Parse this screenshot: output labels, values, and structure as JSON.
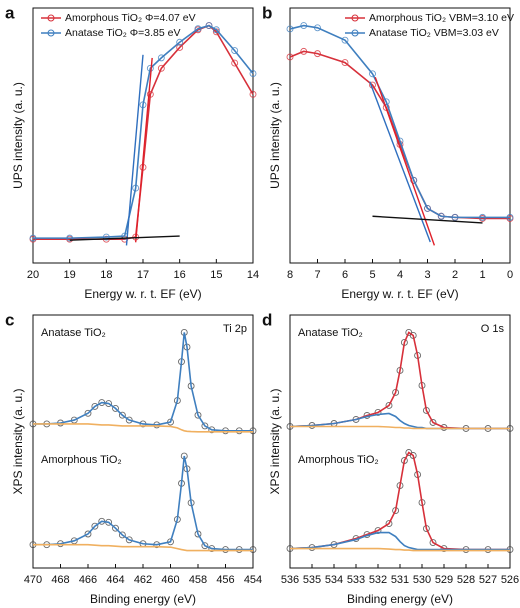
{
  "chart_data": [
    {
      "type": "line",
      "panel": "a",
      "xlabel": "Energy w. r. t. EF (eV)",
      "ylabel": "UPS intensity (a. u.)",
      "xlim": [
        20,
        14
      ],
      "xticks": [
        20,
        19,
        18,
        17,
        16,
        15,
        14
      ],
      "x": [
        20,
        19,
        18,
        17.5,
        17.2,
        17.0,
        16.8,
        16.5,
        16.0,
        15.5,
        15.2,
        15.0,
        14.5,
        14.0
      ],
      "series": [
        {
          "name": "Amorphous TiO₂ Φ=4.07 eV",
          "color": "#d7303a",
          "values": [
            31,
            31,
            31,
            31,
            33,
            100,
            170,
            195,
            215,
            232,
            236,
            230,
            200,
            170
          ]
        },
        {
          "name": "Anatase TiO₂ Φ=3.85 eV",
          "color": "#3f7fbf",
          "values": [
            32,
            32,
            33,
            34,
            80,
            160,
            195,
            205,
            220,
            233,
            236,
            232,
            212,
            190
          ]
        }
      ],
      "lines": [
        {
          "color": "#e0202a",
          "x": [
            17.2,
            16.75
          ],
          "values": [
            28,
            205
          ]
        },
        {
          "color": "#2f6fbf",
          "x": [
            17.45,
            17.0
          ],
          "values": [
            25,
            208
          ]
        },
        {
          "color": "#111111",
          "x": [
            19,
            16
          ],
          "values": [
            30,
            34
          ]
        }
      ]
    },
    {
      "type": "line",
      "panel": "b",
      "xlabel": "Energy w. r. t. EF (eV)",
      "ylabel": "UPS intensity (a. u.)",
      "xlim": [
        8,
        0
      ],
      "xticks": [
        8,
        7,
        6,
        5,
        4,
        3,
        2,
        1,
        0
      ],
      "x": [
        8,
        7.5,
        7,
        6,
        5,
        4.5,
        4,
        3.5,
        3,
        2.5,
        2,
        1,
        0
      ],
      "series": [
        {
          "name": "Amorphous TiO₂ VBM=3.10 eV",
          "color": "#d7303a",
          "values": [
            190,
            195,
            193,
            185,
            165,
            145,
            112,
            80,
            55,
            48,
            47,
            46,
            46
          ]
        },
        {
          "name": "Anatase TiO₂ VBM=3.03 eV",
          "color": "#3f7fbf",
          "values": [
            215,
            218,
            216,
            205,
            175,
            150,
            115,
            80,
            55,
            48,
            47,
            47,
            47
          ]
        }
      ],
      "lines": [
        {
          "color": "#e0202a",
          "x": [
            4.9,
            2.75
          ],
          "values": [
            172,
            22
          ]
        },
        {
          "color": "#2f6fbf",
          "x": [
            5.1,
            2.9
          ],
          "values": [
            168,
            25
          ]
        },
        {
          "color": "#111111",
          "x": [
            5,
            1
          ],
          "values": [
            48,
            42
          ]
        }
      ]
    },
    {
      "type": "line",
      "panel": "c",
      "xlabel": "Binding energy (eV)",
      "ylabel": "XPS intensity (a. u.)",
      "xlim": [
        470,
        454
      ],
      "xticks": [
        470,
        468,
        466,
        464,
        462,
        460,
        458,
        456,
        454
      ],
      "annotations": [
        "Anatase TiO₂",
        "Amorphous TiO₂",
        "Ti 2p"
      ],
      "x": [
        470,
        469,
        468,
        467,
        466,
        465.5,
        465,
        464.5,
        464,
        463.5,
        463,
        462,
        461,
        460,
        459.5,
        459.2,
        459,
        458.8,
        458.5,
        458,
        457.5,
        457,
        456,
        455,
        454
      ],
      "series": [
        {
          "color": "#3f7fbf",
          "marker_color": "#444444",
          "values": [
            146,
            146,
            147,
            150,
            157,
            164,
            168,
            167,
            162,
            155,
            150,
            146,
            145,
            148,
            170,
            210,
            240,
            225,
            185,
            155,
            144,
            140,
            139,
            139,
            139
          ]
        },
        {
          "color": "#f0b060",
          "values": [
            146,
            146,
            146,
            146,
            146,
            145.5,
            145,
            145,
            144.5,
            144,
            144,
            144,
            144,
            143.5,
            142,
            140,
            139,
            138.5,
            138.2,
            138,
            138,
            138,
            138,
            138,
            138
          ]
        },
        {
          "color": "#3f7fbf",
          "marker_color": "#444444",
          "values": [
            22,
            22,
            23,
            26,
            33,
            41,
            46,
            45,
            39,
            32,
            27,
            23,
            22,
            25,
            48,
            85,
            113,
            100,
            65,
            33,
            21,
            18,
            17,
            17,
            17
          ]
        },
        {
          "color": "#f0b060",
          "values": [
            22,
            22,
            22,
            22,
            22,
            21.5,
            21,
            21,
            20.5,
            20,
            20,
            20,
            20,
            19.5,
            18,
            17,
            16.5,
            16,
            16,
            16,
            16,
            16,
            16,
            16,
            16
          ]
        }
      ]
    },
    {
      "type": "line",
      "panel": "d",
      "xlabel": "Binding energy (eV)",
      "ylabel": "XPS intensity (a. u.)",
      "xlim": [
        536,
        526
      ],
      "xticks": [
        536,
        535,
        534,
        533,
        532,
        531,
        530,
        529,
        528,
        527,
        526
      ],
      "annotations": [
        "Anatase TiO₂",
        "Amorphous TiO₂",
        "O 1s"
      ],
      "x": [
        536,
        535,
        534,
        533,
        532.5,
        532,
        531.5,
        531.2,
        531,
        530.8,
        530.6,
        530.4,
        530.2,
        530,
        529.8,
        529.5,
        529,
        528,
        527,
        526
      ],
      "series": [
        {
          "color": "#d7303a",
          "marker_color": "#444444",
          "values": [
            144,
            145,
            147,
            151,
            155,
            158,
            165,
            178,
            200,
            228,
            238,
            235,
            215,
            185,
            160,
            148,
            143,
            142,
            142,
            142
          ]
        },
        {
          "color": "#3f7fbf",
          "values": [
            144,
            145,
            147,
            151,
            154,
            156,
            157,
            154,
            150,
            147,
            145,
            144,
            143,
            143,
            142,
            142,
            142,
            142,
            142,
            142
          ]
        },
        {
          "color": "#f0b060",
          "values": [
            144,
            144,
            144,
            144,
            144,
            144,
            143.5,
            143,
            143,
            142.5,
            142.5,
            142,
            142,
            142,
            142,
            142,
            142,
            142,
            142,
            142
          ]
        },
        {
          "color": "#d7303a",
          "marker_color": "#444444",
          "values": [
            22,
            23,
            26,
            32,
            36,
            40,
            47,
            60,
            85,
            110,
            118,
            115,
            96,
            68,
            42,
            28,
            22,
            21,
            21,
            21
          ]
        },
        {
          "color": "#3f7fbf",
          "values": [
            22,
            23,
            26,
            31,
            35,
            38,
            38,
            34,
            29,
            25,
            23,
            22,
            21,
            21,
            21,
            21,
            21,
            21,
            21,
            21
          ]
        },
        {
          "color": "#f0b060",
          "values": [
            22,
            22,
            22,
            22,
            22,
            22,
            21.5,
            21,
            21,
            20.5,
            20.5,
            20,
            20,
            20,
            20,
            20,
            20,
            20,
            20,
            20
          ]
        }
      ]
    }
  ]
}
